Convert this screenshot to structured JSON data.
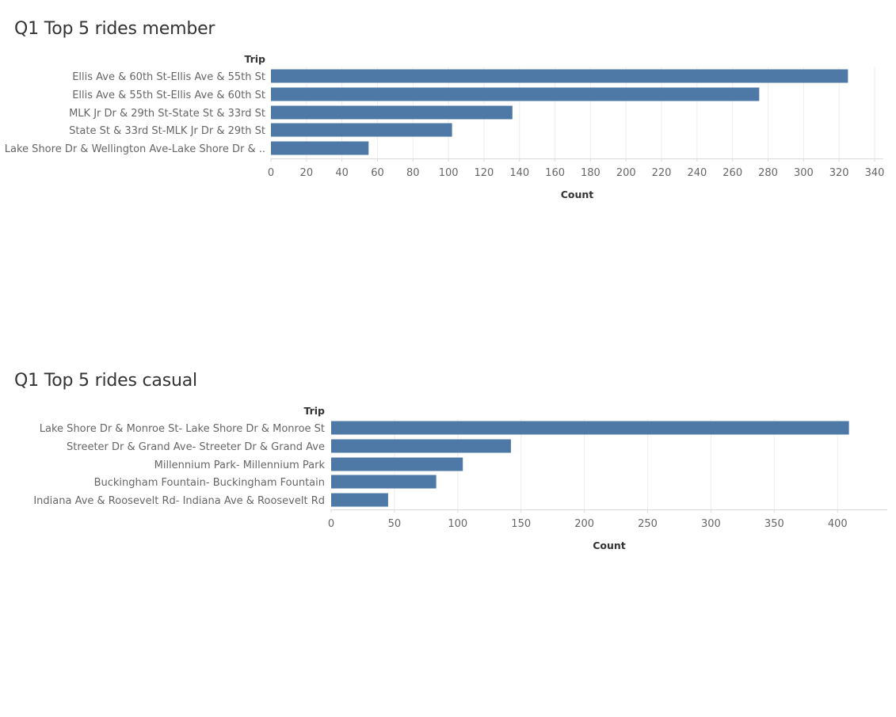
{
  "colors": {
    "bar": "#4e79a7",
    "grid": "#ededed",
    "axis": "#d9d9d9",
    "text": "#666666",
    "title": "#333333"
  },
  "chart_data": [
    {
      "type": "bar",
      "orientation": "horizontal",
      "title": "Q1 Top 5 rides member",
      "ylabel": "Trip",
      "xlabel": "Count",
      "categories": [
        "Ellis Ave & 60th St-Ellis Ave & 55th St",
        "Ellis Ave & 55th St-Ellis Ave & 60th St",
        "MLK Jr Dr & 29th St-State St & 33rd St",
        "State St & 33rd St-MLK Jr Dr & 29th St",
        "Lake Shore Dr & Wellington Ave-Lake Shore Dr & .."
      ],
      "values": [
        325,
        275,
        136,
        102,
        55
      ],
      "xlim": [
        0,
        340
      ],
      "xticks": [
        0,
        20,
        40,
        60,
        80,
        100,
        120,
        140,
        160,
        180,
        200,
        220,
        240,
        260,
        280,
        300,
        320,
        340
      ],
      "grid": true
    },
    {
      "type": "bar",
      "orientation": "horizontal",
      "title": "Q1 Top 5 rides casual",
      "ylabel": "Trip",
      "xlabel": "Count",
      "categories": [
        "Lake Shore Dr & Monroe St- Lake Shore Dr & Monroe St",
        "Streeter Dr & Grand Ave- Streeter Dr & Grand Ave",
        "Millennium Park- Millennium Park",
        "Buckingham Fountain- Buckingham Fountain",
        "Indiana Ave & Roosevelt Rd- Indiana Ave & Roosevelt Rd"
      ],
      "values": [
        409,
        142,
        104,
        83,
        45
      ],
      "xlim": [
        0,
        430
      ],
      "xticks": [
        0,
        50,
        100,
        150,
        200,
        250,
        300,
        350,
        400
      ],
      "grid": true
    }
  ]
}
